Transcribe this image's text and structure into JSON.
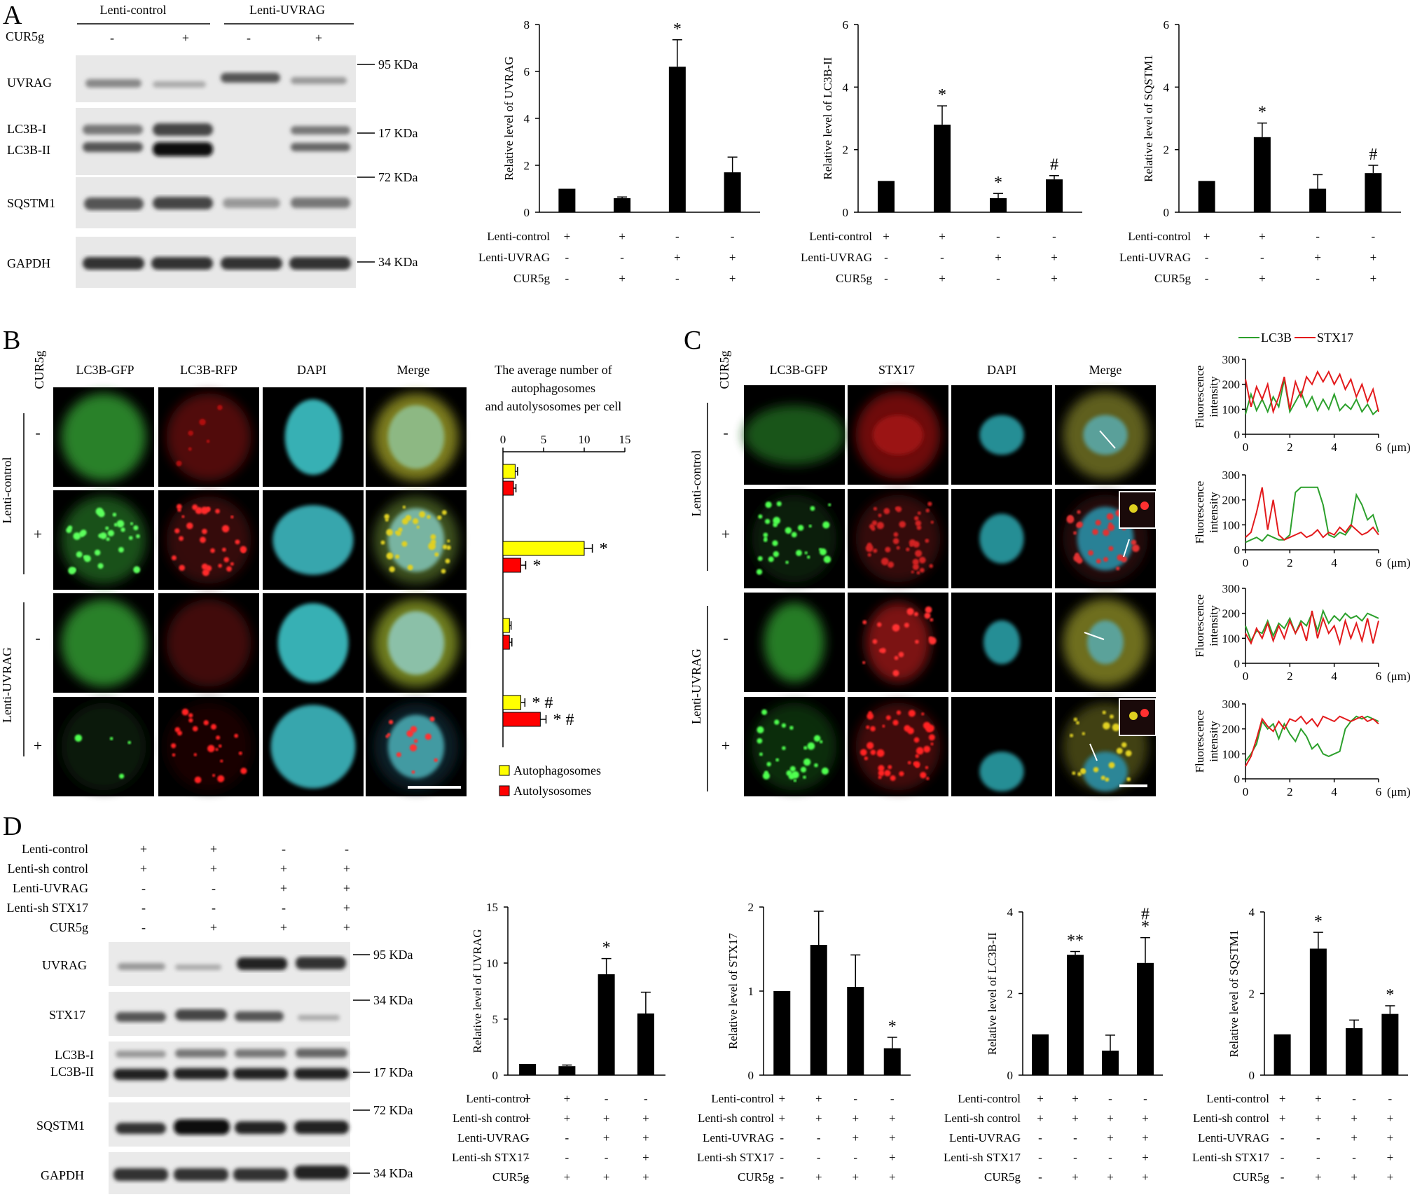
{
  "panels": {
    "A": "A",
    "B": "B",
    "C": "C",
    "D": "D"
  },
  "panelA": {
    "groups": [
      "Lenti-control",
      "Lenti-UVRAG"
    ],
    "cur5g_label": "CUR5g",
    "cur5g_signs": [
      "-",
      "+",
      "-",
      "+"
    ],
    "blots": [
      "UVRAG",
      "LC3B-I",
      "LC3B-II",
      "SQSTM1",
      "GAPDH"
    ],
    "markers": [
      "95 KDa",
      "17 KDa",
      "72 KDa",
      "34 KDa"
    ]
  },
  "panelB": {
    "columns": [
      "LC3B-GFP",
      "LC3B-RFP",
      "DAPI",
      "Merge"
    ],
    "row_header": "CUR5g",
    "row_signs": [
      "-",
      "+",
      "-",
      "+"
    ],
    "groups": [
      "Lenti-control",
      "Lenti-UVRAG"
    ],
    "chart_title": [
      "The average number of",
      "autophagosomes",
      "and autolysosomes per cell"
    ],
    "legend": [
      "Autophagosomes",
      "Autolysosomes"
    ],
    "legend_colors": [
      "#ffff00",
      "#ff0000"
    ]
  },
  "panelC": {
    "columns": [
      "LC3B-GFP",
      "STX17",
      "DAPI",
      "Merge"
    ],
    "row_header": "CUR5g",
    "row_signs": [
      "-",
      "+",
      "-",
      "+"
    ],
    "groups": [
      "Lenti-control",
      "Lenti-UVRAG"
    ],
    "legend": [
      "LC3B",
      "STX17"
    ],
    "legend_colors": [
      "#2ca02c",
      "#e31a1c"
    ],
    "ylabel": [
      "Fluorescence",
      "intensity"
    ],
    "x_unit": "(μm)"
  },
  "panelD": {
    "cond_labels": [
      "Lenti-control",
      "Lenti-sh control",
      "Lenti-UVRAG",
      "Lenti-sh STX17",
      "CUR5g"
    ],
    "cond_signs": [
      [
        "+",
        "+",
        "-",
        "-"
      ],
      [
        "+",
        "+",
        "+",
        "+"
      ],
      [
        "-",
        "-",
        "+",
        "+"
      ],
      [
        "-",
        "-",
        "-",
        "+"
      ],
      [
        "-",
        "+",
        "+",
        "+"
      ]
    ],
    "blots": [
      "UVRAG",
      "STX17",
      "LC3B-I",
      "LC3B-II",
      "SQSTM1",
      "GAPDH"
    ],
    "markers": [
      "95 KDa",
      "34 KDa",
      "17 KDa",
      "72 KDa",
      "34 KDa"
    ]
  },
  "chart_data": [
    {
      "id": "A1",
      "type": "bar",
      "ylabel": "Relative level of UVRAG",
      "ylim": [
        0,
        8
      ],
      "yticks": [
        0,
        2,
        4,
        6,
        8
      ],
      "values": [
        1.0,
        0.6,
        6.2,
        1.7
      ],
      "errors": [
        0,
        0.05,
        1.15,
        0.65
      ],
      "annotations": [
        "",
        "",
        "*",
        ""
      ],
      "cond_labels": [
        "Lenti-control",
        "Lenti-UVRAG",
        "CUR5g"
      ],
      "cond_signs": [
        [
          "+",
          "+",
          "-",
          "-"
        ],
        [
          "-",
          "-",
          "+",
          "+"
        ],
        [
          "-",
          "+",
          "-",
          "+"
        ]
      ]
    },
    {
      "id": "A2",
      "type": "bar",
      "ylabel": "Relative level of LC3B-II",
      "ylim": [
        0,
        6
      ],
      "yticks": [
        0,
        2,
        4,
        6
      ],
      "values": [
        1.0,
        2.8,
        0.45,
        1.05
      ],
      "errors": [
        0,
        0.6,
        0.15,
        0.12
      ],
      "annotations": [
        "",
        "*",
        "*",
        "#"
      ],
      "cond_labels": [
        "Lenti-control",
        "Lenti-UVRAG",
        "CUR5g"
      ],
      "cond_signs": [
        [
          "+",
          "+",
          "-",
          "-"
        ],
        [
          "-",
          "-",
          "+",
          "+"
        ],
        [
          "-",
          "+",
          "-",
          "+"
        ]
      ]
    },
    {
      "id": "A3",
      "type": "bar",
      "ylabel": "Relative level of SQSTM1",
      "ylim": [
        0,
        6
      ],
      "yticks": [
        0,
        2,
        4,
        6
      ],
      "values": [
        1.0,
        2.4,
        0.75,
        1.25
      ],
      "errors": [
        0,
        0.45,
        0.45,
        0.25
      ],
      "annotations": [
        "",
        "*",
        "",
        "#"
      ],
      "cond_labels": [
        "Lenti-control",
        "Lenti-UVRAG",
        "CUR5g"
      ],
      "cond_signs": [
        [
          "+",
          "+",
          "-",
          "-"
        ],
        [
          "-",
          "-",
          "+",
          "+"
        ],
        [
          "-",
          "+",
          "-",
          "+"
        ]
      ]
    },
    {
      "id": "B1",
      "type": "bar",
      "orientation": "horizontal",
      "xlim": [
        0,
        15
      ],
      "xticks": [
        0,
        5,
        10,
        15
      ],
      "series": [
        {
          "name": "Autophagosomes",
          "values": [
            1.5,
            10.0,
            0.8,
            2.2
          ],
          "errors": [
            0.3,
            1.0,
            0.2,
            0.5
          ],
          "annotations": [
            "",
            "*",
            "",
            "* #"
          ]
        },
        {
          "name": "Autolysosomes",
          "values": [
            1.3,
            2.2,
            0.8,
            4.6
          ],
          "errors": [
            0.3,
            0.6,
            0.3,
            0.7
          ],
          "annotations": [
            "",
            "*",
            "",
            "* #"
          ]
        }
      ]
    },
    {
      "id": "C1",
      "type": "line",
      "xlim": [
        0,
        6
      ],
      "xticks": [
        0,
        2,
        4,
        6
      ],
      "ylim": [
        0,
        300
      ],
      "yticks": [
        0,
        100,
        200,
        300
      ],
      "series": [
        {
          "name": "LC3B",
          "x": [
            0,
            0.25,
            0.5,
            0.75,
            1,
            1.25,
            1.5,
            1.75,
            2,
            2.25,
            2.5,
            2.75,
            3,
            3.25,
            3.5,
            3.75,
            4,
            4.25,
            4.5,
            4.75,
            5,
            5.25,
            5.5,
            5.75,
            6
          ],
          "y": [
            80,
            160,
            95,
            140,
            90,
            150,
            110,
            220,
            90,
            130,
            170,
            110,
            150,
            95,
            140,
            100,
            160,
            95,
            120,
            100,
            140,
            90,
            120,
            80,
            100
          ]
        },
        {
          "name": "STX17",
          "x": [
            0,
            0.25,
            0.5,
            0.75,
            1,
            1.25,
            1.5,
            1.75,
            2,
            2.25,
            2.5,
            2.75,
            3,
            3.25,
            3.5,
            3.75,
            4,
            4.25,
            4.5,
            4.75,
            5,
            5.25,
            5.5,
            5.75,
            6
          ],
          "y": [
            220,
            110,
            190,
            140,
            200,
            90,
            150,
            230,
            100,
            210,
            150,
            230,
            200,
            250,
            210,
            250,
            200,
            240,
            180,
            220,
            150,
            200,
            130,
            180,
            90
          ]
        }
      ]
    },
    {
      "id": "C2",
      "type": "line",
      "xlim": [
        0,
        6
      ],
      "xticks": [
        0,
        2,
        4,
        6
      ],
      "ylim": [
        0,
        300
      ],
      "yticks": [
        0,
        100,
        200,
        300
      ],
      "series": [
        {
          "name": "LC3B",
          "x": [
            0,
            0.25,
            0.5,
            0.75,
            1,
            1.25,
            1.5,
            1.75,
            2,
            2.25,
            2.5,
            2.75,
            3,
            3.25,
            3.5,
            3.75,
            4,
            4.25,
            4.5,
            4.75,
            5,
            5.25,
            5.5,
            5.75,
            6
          ],
          "y": [
            30,
            40,
            50,
            35,
            60,
            50,
            40,
            40,
            60,
            230,
            250,
            250,
            250,
            250,
            180,
            60,
            50,
            70,
            60,
            90,
            220,
            180,
            120,
            140,
            70
          ]
        },
        {
          "name": "STX17",
          "x": [
            0,
            0.25,
            0.5,
            0.75,
            1,
            1.25,
            1.5,
            1.75,
            2,
            2.25,
            2.5,
            2.75,
            3,
            3.25,
            3.5,
            3.75,
            4,
            4.25,
            4.5,
            4.75,
            5,
            5.25,
            5.5,
            5.75,
            6
          ],
          "y": [
            50,
            70,
            150,
            250,
            80,
            200,
            60,
            40,
            50,
            60,
            70,
            50,
            60,
            80,
            50,
            70,
            60,
            90,
            70,
            100,
            80,
            60,
            70,
            90,
            60
          ]
        }
      ]
    },
    {
      "id": "C3",
      "type": "line",
      "xlim": [
        0,
        6
      ],
      "xticks": [
        0,
        2,
        4,
        6
      ],
      "ylim": [
        0,
        300
      ],
      "yticks": [
        0,
        100,
        200,
        300
      ],
      "series": [
        {
          "name": "LC3B",
          "x": [
            0,
            0.25,
            0.5,
            0.75,
            1,
            1.25,
            1.5,
            1.75,
            2,
            2.25,
            2.5,
            2.75,
            3,
            3.25,
            3.5,
            3.75,
            4,
            4.25,
            4.5,
            4.75,
            5,
            5.25,
            5.5,
            5.75,
            6
          ],
          "y": [
            150,
            90,
            130,
            120,
            170,
            110,
            160,
            140,
            180,
            120,
            170,
            150,
            200,
            130,
            210,
            160,
            190,
            170,
            200,
            180,
            190,
            170,
            200,
            190,
            180
          ]
        },
        {
          "name": "STX17",
          "x": [
            0,
            0.25,
            0.5,
            0.75,
            1,
            1.25,
            1.5,
            1.75,
            2,
            2.25,
            2.5,
            2.75,
            3,
            3.25,
            3.5,
            3.75,
            4,
            4.25,
            4.5,
            4.75,
            5,
            5.25,
            5.5,
            5.75,
            6
          ],
          "y": [
            120,
            80,
            140,
            100,
            160,
            90,
            150,
            100,
            170,
            120,
            160,
            90,
            210,
            100,
            180,
            120,
            150,
            80,
            170,
            100,
            160,
            90,
            180,
            80,
            170
          ]
        }
      ]
    },
    {
      "id": "C4",
      "type": "line",
      "xlim": [
        0,
        6
      ],
      "xticks": [
        0,
        2,
        4,
        6
      ],
      "ylim": [
        0,
        300
      ],
      "yticks": [
        0,
        100,
        200,
        300
      ],
      "series": [
        {
          "name": "LC3B",
          "x": [
            0,
            0.25,
            0.5,
            0.75,
            1,
            1.25,
            1.5,
            1.75,
            2,
            2.25,
            2.5,
            2.75,
            3,
            3.25,
            3.5,
            3.75,
            4,
            4.25,
            4.5,
            4.75,
            5,
            5.25,
            5.5,
            5.75,
            6
          ],
          "y": [
            70,
            100,
            140,
            230,
            200,
            220,
            160,
            220,
            180,
            150,
            200,
            170,
            120,
            140,
            100,
            90,
            100,
            110,
            200,
            230,
            250,
            240,
            250,
            240,
            230
          ]
        },
        {
          "name": "STX17",
          "x": [
            0,
            0.25,
            0.5,
            0.75,
            1,
            1.25,
            1.5,
            1.75,
            2,
            2.25,
            2.5,
            2.75,
            3,
            3.25,
            3.5,
            3.75,
            4,
            4.25,
            4.5,
            4.75,
            5,
            5.25,
            5.5,
            5.75,
            6
          ],
          "y": [
            50,
            90,
            160,
            240,
            210,
            190,
            230,
            200,
            240,
            230,
            250,
            220,
            240,
            210,
            250,
            240,
            230,
            250,
            240,
            230,
            240,
            250,
            230,
            240,
            220
          ]
        }
      ]
    },
    {
      "id": "D1",
      "type": "bar",
      "ylabel": "Relative level of UVRAG",
      "ylim": [
        0,
        15
      ],
      "yticks": [
        0,
        5,
        10,
        15
      ],
      "values": [
        1.0,
        0.8,
        9.0,
        5.5
      ],
      "errors": [
        0,
        0.1,
        1.4,
        1.9
      ],
      "annotations": [
        "",
        "",
        "*",
        ""
      ]
    },
    {
      "id": "D2",
      "type": "bar",
      "ylabel": "Relative level of STX17",
      "ylim": [
        0,
        2
      ],
      "yticks": [
        0,
        1,
        2
      ],
      "values": [
        1.0,
        1.55,
        1.05,
        0.32
      ],
      "errors": [
        0,
        0.4,
        0.38,
        0.13
      ],
      "annotations": [
        "",
        "",
        "",
        "*"
      ]
    },
    {
      "id": "D3",
      "type": "bar",
      "ylabel": "Relative level of LC3B-II",
      "ylim": [
        0,
        4
      ],
      "yticks": [
        0,
        2,
        4
      ],
      "values": [
        1.0,
        2.95,
        0.6,
        2.75
      ],
      "errors": [
        0,
        0.08,
        0.38,
        0.62
      ],
      "annotations": [
        "",
        "**",
        "",
        "*"
      ],
      "annotations2": [
        "",
        "",
        "",
        "#"
      ]
    },
    {
      "id": "D4",
      "type": "bar",
      "ylabel": "Relative level of SQSTM1",
      "ylim": [
        0,
        4
      ],
      "yticks": [
        0,
        2,
        4
      ],
      "values": [
        1.0,
        3.1,
        1.15,
        1.5
      ],
      "errors": [
        0,
        0.4,
        0.2,
        0.2
      ],
      "annotations": [
        "",
        "*",
        "",
        "*"
      ]
    }
  ]
}
